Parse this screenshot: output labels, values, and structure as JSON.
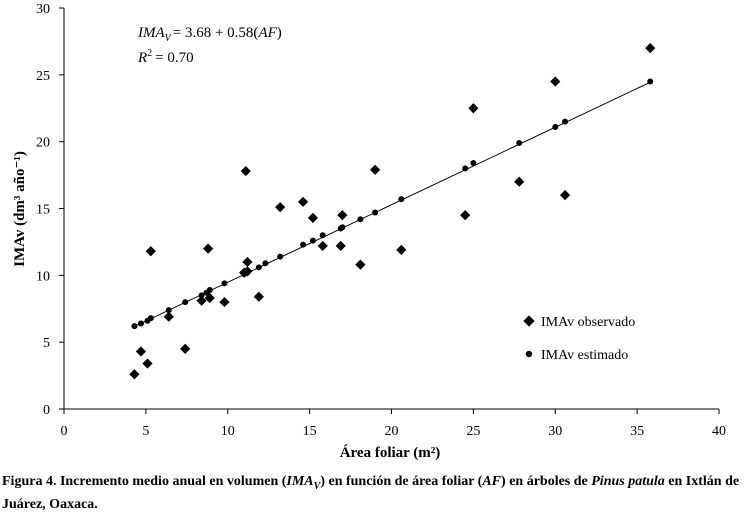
{
  "chart_data": {
    "type": "scatter",
    "title": "",
    "xlabel": "Área foliar (m²)",
    "ylabel": "IMAv (dm³ año⁻¹)",
    "xlim": [
      0,
      40
    ],
    "ylim": [
      0,
      30
    ],
    "x_ticks": [
      0,
      5,
      10,
      15,
      20,
      25,
      30,
      35,
      40
    ],
    "y_ticks": [
      0,
      5,
      10,
      15,
      20,
      25,
      30
    ],
    "grid": false,
    "legend_position": "lower-right",
    "equation": {
      "lhs": "IMA",
      "lhs_sub": "V",
      "rhs": "= 3.68 + 0.58(",
      "var": "AF",
      "close": ")",
      "r2_label": "R",
      "r2_exp": "2",
      "r2_value": "= 0.70"
    },
    "fit_line": {
      "intercept": 3.68,
      "slope": 0.58,
      "x_range": [
        4.3,
        35.7
      ]
    },
    "series": [
      {
        "name": "IMAv observado",
        "marker": "diamond",
        "points": [
          [
            4.3,
            2.6
          ],
          [
            4.7,
            4.3
          ],
          [
            5.1,
            3.4
          ],
          [
            5.3,
            11.8
          ],
          [
            6.4,
            6.9
          ],
          [
            7.4,
            4.5
          ],
          [
            8.4,
            8.1
          ],
          [
            8.8,
            12.0
          ],
          [
            8.9,
            8.3
          ],
          [
            9.8,
            8.0
          ],
          [
            11.0,
            10.2
          ],
          [
            11.1,
            17.8
          ],
          [
            11.2,
            11.0
          ],
          [
            11.2,
            10.3
          ],
          [
            11.9,
            8.4
          ],
          [
            13.2,
            15.1
          ],
          [
            14.6,
            15.5
          ],
          [
            15.2,
            14.3
          ],
          [
            15.8,
            12.2
          ],
          [
            16.9,
            12.2
          ],
          [
            17.0,
            14.5
          ],
          [
            18.1,
            10.8
          ],
          [
            19.0,
            17.9
          ],
          [
            20.6,
            11.9
          ],
          [
            24.5,
            14.5
          ],
          [
            25.0,
            22.5
          ],
          [
            27.8,
            17.0
          ],
          [
            30.0,
            24.5
          ],
          [
            30.6,
            16.0
          ],
          [
            35.8,
            27.0
          ]
        ]
      },
      {
        "name": "IMAv estimado",
        "marker": "circle",
        "points": [
          [
            4.3,
            6.2
          ],
          [
            4.7,
            6.4
          ],
          [
            5.1,
            6.6
          ],
          [
            5.3,
            6.8
          ],
          [
            6.4,
            7.4
          ],
          [
            7.4,
            8.0
          ],
          [
            8.4,
            8.5
          ],
          [
            8.7,
            8.7
          ],
          [
            8.9,
            8.9
          ],
          [
            9.8,
            9.4
          ],
          [
            11.0,
            10.1
          ],
          [
            11.2,
            10.2
          ],
          [
            11.9,
            10.6
          ],
          [
            12.3,
            10.9
          ],
          [
            13.2,
            11.4
          ],
          [
            14.6,
            12.3
          ],
          [
            15.2,
            12.6
          ],
          [
            15.8,
            13.0
          ],
          [
            16.9,
            13.5
          ],
          [
            17.0,
            13.6
          ],
          [
            18.1,
            14.2
          ],
          [
            19.0,
            14.7
          ],
          [
            20.6,
            15.7
          ],
          [
            24.5,
            18.0
          ],
          [
            25.0,
            18.4
          ],
          [
            27.8,
            19.9
          ],
          [
            30.0,
            21.1
          ],
          [
            30.6,
            21.5
          ],
          [
            35.8,
            24.5
          ]
        ]
      }
    ]
  },
  "caption": {
    "prefix": "Figura 4. Incremento medio anual en volumen (",
    "ima": "IMA",
    "ima_sub": "V",
    "mid": ") en función de área foliar (",
    "af": "AF",
    "mid2": ") en árboles de ",
    "species": "Pinus patula",
    "suffix": " en Ixtlán de Juárez, Oaxaca."
  }
}
